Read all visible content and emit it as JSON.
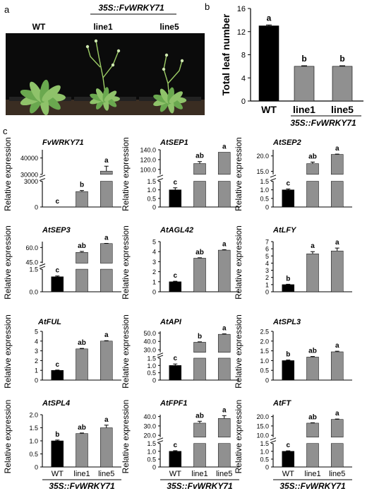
{
  "panel_labels": {
    "a": "a",
    "b": "b",
    "c": "c"
  },
  "photo": {
    "labels": [
      "WT",
      "line1",
      "line5"
    ],
    "genotype": "35S::FvWRKY71",
    "plants": [
      "WT",
      "line1",
      "line5"
    ]
  },
  "chart_data": [
    {
      "id": "b",
      "type": "bar",
      "ylabel": "Total leaf number",
      "ylim": [
        0,
        16
      ],
      "yticks": [
        0,
        4,
        8,
        12,
        16
      ],
      "categories": [
        "WT",
        "line1",
        "line5"
      ],
      "values": [
        13.0,
        6.0,
        6.0
      ],
      "errors": [
        0.15,
        0.1,
        0.1
      ],
      "letters": [
        "a",
        "b",
        "b"
      ],
      "group_label": "35S::FvWRKY71",
      "colors": [
        "#000000",
        "#909090",
        "#909090"
      ]
    },
    {
      "id": "c1",
      "type": "bar",
      "title": "FvWRKY71",
      "ylabel": "Relative expression",
      "broken": true,
      "lower": {
        "ylim": [
          0,
          3000
        ],
        "ticks": [
          "0",
          "3000"
        ]
      },
      "upper": {
        "ylim": [
          30000,
          45000
        ],
        "ticks": [
          "30000",
          "40000"
        ]
      },
      "categories": [
        "WT",
        "line1",
        "line5"
      ],
      "values": [
        1,
        1800,
        32000
      ],
      "errors": [
        0,
        120,
        3000
      ],
      "letters": [
        "c",
        "b",
        "a"
      ],
      "colors": [
        "#000000",
        "#909090",
        "#909090"
      ]
    },
    {
      "id": "c2",
      "type": "bar",
      "title": "AtSEP1",
      "ylabel": "Relative expression",
      "broken": true,
      "lower": {
        "ylim": [
          0,
          1.5
        ],
        "ticks": [
          "0",
          "0.5",
          "1.0",
          "1.5"
        ]
      },
      "upper": {
        "ylim": [
          90,
          140
        ],
        "ticks": [
          "100.0",
          "120.0",
          "140.0"
        ]
      },
      "categories": [
        "WT",
        "line1",
        "line5"
      ],
      "values": [
        1.0,
        112,
        135
      ],
      "errors": [
        0.12,
        4,
        0
      ],
      "letters": [
        "c",
        "ab",
        "a"
      ],
      "colors": [
        "#000000",
        "#909090",
        "#909090"
      ]
    },
    {
      "id": "c3",
      "type": "bar",
      "title": "AtSEP2",
      "ylabel": "Relative expression",
      "broken": true,
      "lower": {
        "ylim": [
          0,
          1.5
        ],
        "ticks": [
          "0",
          "0.5",
          "1.0",
          "1.5"
        ]
      },
      "upper": {
        "ylim": [
          14,
          22
        ],
        "ticks": [
          "15.0",
          "20.0"
        ]
      },
      "categories": [
        "WT",
        "line1",
        "line5"
      ],
      "values": [
        1.0,
        17.5,
        20.5
      ],
      "errors": [
        0.05,
        0.5,
        0.1
      ],
      "letters": [
        "c",
        "ab",
        "a"
      ],
      "colors": [
        "#000000",
        "#909090",
        "#909090"
      ]
    },
    {
      "id": "c4",
      "type": "bar",
      "title": "AtSEP3",
      "ylabel": "Relative expression",
      "broken": true,
      "lower": {
        "ylim": [
          0,
          1.5
        ],
        "ticks": [
          "0.0",
          "1.5"
        ]
      },
      "upper": {
        "ylim": [
          44,
          66
        ],
        "ticks": [
          "45.0",
          "60.0"
        ]
      },
      "categories": [
        "WT",
        "line1",
        "line5"
      ],
      "values": [
        1.0,
        55,
        64
      ],
      "errors": [
        0.05,
        1.0,
        0.2
      ],
      "letters": [
        "c",
        "ab",
        "a"
      ],
      "colors": [
        "#000000",
        "#909090",
        "#909090"
      ]
    },
    {
      "id": "c5",
      "type": "bar",
      "title": "AtAGL42",
      "ylabel": "Relative expression",
      "broken": false,
      "ylim": [
        0,
        5
      ],
      "ticks": [
        "0",
        "1",
        "2",
        "3",
        "4",
        "5"
      ],
      "categories": [
        "WT",
        "line1",
        "line5"
      ],
      "values": [
        1.0,
        3.35,
        4.15
      ],
      "errors": [
        0.05,
        0.04,
        0.05
      ],
      "letters": [
        "c",
        "ab",
        "a"
      ],
      "colors": [
        "#000000",
        "#909090",
        "#909090"
      ]
    },
    {
      "id": "c6",
      "type": "bar",
      "title": "AtLFY",
      "ylabel": "Relative expression",
      "broken": false,
      "ylim": [
        0,
        7
      ],
      "ticks": [
        "0",
        "1",
        "2",
        "3",
        "4",
        "5",
        "6",
        "7"
      ],
      "categories": [
        "WT",
        "line1",
        "line5"
      ],
      "values": [
        1.0,
        5.3,
        5.7
      ],
      "errors": [
        0.05,
        0.3,
        0.4
      ],
      "letters": [
        "b",
        "a",
        "a"
      ],
      "colors": [
        "#000000",
        "#909090",
        "#909090"
      ]
    },
    {
      "id": "c7",
      "type": "bar",
      "title": "AtFUL",
      "ylabel": "Relative expression",
      "broken": false,
      "ylim": [
        0,
        5
      ],
      "ticks": [
        "0",
        "1",
        "2",
        "3",
        "4",
        "5"
      ],
      "categories": [
        "WT",
        "line1",
        "line5"
      ],
      "values": [
        1.0,
        3.2,
        4.0
      ],
      "errors": [
        0.03,
        0.05,
        0.04
      ],
      "letters": [
        "c",
        "ab",
        "a"
      ],
      "colors": [
        "#000000",
        "#909090",
        "#909090"
      ]
    },
    {
      "id": "c8",
      "type": "bar",
      "title": "AtAPI",
      "ylabel": "Relative expression",
      "broken": true,
      "lower": {
        "ylim": [
          0,
          1.5
        ],
        "ticks": [
          "0",
          "0.5",
          "1.0",
          "1.5"
        ]
      },
      "upper": {
        "ylim": [
          27,
          52
        ],
        "ticks": [
          "30.0",
          "40.0",
          "50.0"
        ]
      },
      "categories": [
        "WT",
        "line1",
        "line5"
      ],
      "values": [
        1.0,
        39,
        48.5
      ],
      "errors": [
        0.1,
        0.5,
        0.5
      ],
      "letters": [
        "c",
        "b",
        "a"
      ],
      "colors": [
        "#000000",
        "#909090",
        "#909090"
      ]
    },
    {
      "id": "c9",
      "type": "bar",
      "title": "AtSPL3",
      "ylabel": "Relative expression",
      "broken": false,
      "ylim": [
        0,
        2.5
      ],
      "ticks": [
        "0",
        "0.5",
        "1.0",
        "1.5",
        "2.0",
        "2.5"
      ],
      "categories": [
        "WT",
        "line1",
        "line5"
      ],
      "values": [
        1.0,
        1.18,
        1.45
      ],
      "errors": [
        0.03,
        0.03,
        0.03
      ],
      "letters": [
        "b",
        "ab",
        "a"
      ],
      "colors": [
        "#000000",
        "#909090",
        "#909090"
      ]
    },
    {
      "id": "c10",
      "type": "bar",
      "title": "AtSPL4",
      "ylabel": "Relative expression",
      "broken": false,
      "ylim": [
        0,
        2.0
      ],
      "ticks": [
        "0",
        "0.5",
        "1.0",
        "1.5",
        "2.0"
      ],
      "categories": [
        "WT",
        "line1",
        "line5"
      ],
      "values": [
        1.0,
        1.28,
        1.5
      ],
      "errors": [
        0.03,
        0.02,
        0.1
      ],
      "letters": [
        "b",
        "ab",
        "a"
      ],
      "colors": [
        "#000000",
        "#909090",
        "#909090"
      ],
      "xlabels": [
        "WT",
        "line1",
        "line5"
      ],
      "group_label": "35S::FvWRKY71"
    },
    {
      "id": "c11",
      "type": "bar",
      "title": "AtFPF1",
      "ylabel": "Relative expression",
      "broken": true,
      "lower": {
        "ylim": [
          0,
          1.5
        ],
        "ticks": [
          "0",
          "0.5",
          "1.0",
          "1.5"
        ]
      },
      "upper": {
        "ylim": [
          18,
          42
        ],
        "ticks": [
          "20.0",
          "30.0",
          "40.0"
        ]
      },
      "categories": [
        "WT",
        "line1",
        "line5"
      ],
      "values": [
        1.0,
        33,
        38
      ],
      "errors": [
        0.04,
        2.0,
        3.0
      ],
      "letters": [
        "c",
        "ab",
        "a"
      ],
      "colors": [
        "#000000",
        "#909090",
        "#909090"
      ],
      "xlabels": [
        "WT",
        "line1",
        "line5"
      ],
      "group_label": "35S::FvWRKY71"
    },
    {
      "id": "c12",
      "type": "bar",
      "title": "AtFT",
      "ylabel": "Relative expression",
      "broken": true,
      "lower": {
        "ylim": [
          0,
          1.5
        ],
        "ticks": [
          "0",
          "0.5",
          "1.0",
          "1.5"
        ]
      },
      "upper": {
        "ylim": [
          9,
          21
        ],
        "ticks": [
          "10.0",
          "15.0",
          "20.0"
        ]
      },
      "categories": [
        "WT",
        "line1",
        "line5"
      ],
      "values": [
        1.0,
        16.5,
        18.5
      ],
      "errors": [
        0.03,
        0.2,
        0.2
      ],
      "letters": [
        "c",
        "ab",
        "a"
      ],
      "colors": [
        "#000000",
        "#909090",
        "#909090"
      ],
      "xlabels": [
        "WT",
        "line1",
        "line5"
      ],
      "group_label": "35S::FvWRKY71"
    }
  ]
}
